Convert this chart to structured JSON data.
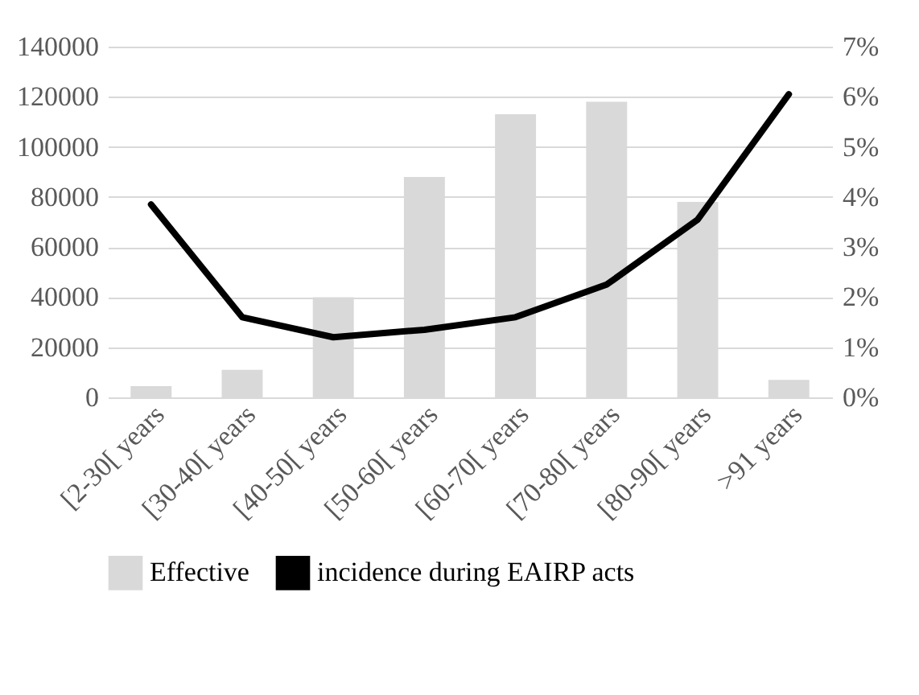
{
  "chart_data": {
    "type": "bar",
    "categories": [
      "[2-30[ years",
      "[30-40[ years",
      "[40-50[ years",
      "[50-60[ years",
      "[60-70[ years",
      "[70-80[ years",
      "[80-90[ years",
      ">91 years"
    ],
    "series": [
      {
        "name": "Effective",
        "color": "#d9d9d9",
        "values": [
          4500,
          11000,
          40000,
          88000,
          113000,
          118000,
          78000,
          7000
        ]
      },
      {
        "name": "incidence during EAIRP acts",
        "type": "line",
        "axis": "y2",
        "color": "#000000",
        "values": [
          3.85,
          1.6,
          1.2,
          1.35,
          1.6,
          2.25,
          3.55,
          6.05
        ]
      }
    ],
    "ylim": [
      0,
      140000
    ],
    "yticks": [
      0,
      20000,
      40000,
      60000,
      80000,
      100000,
      120000,
      140000
    ],
    "y2lim": [
      0,
      7
    ],
    "y2ticks": [
      {
        "value": 0,
        "label": "0%"
      },
      {
        "value": 1,
        "label": "1%"
      },
      {
        "value": 2,
        "label": "2%"
      },
      {
        "value": 3,
        "label": "3%"
      },
      {
        "value": 4,
        "label": "4%"
      },
      {
        "value": 5,
        "label": "5%"
      },
      {
        "value": 6,
        "label": "6%"
      },
      {
        "value": 7,
        "label": "7%"
      }
    ],
    "grid": "y",
    "legend": "bottom",
    "marker": "none"
  }
}
